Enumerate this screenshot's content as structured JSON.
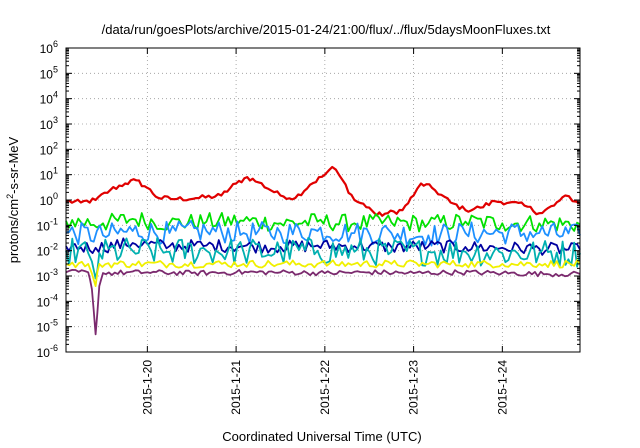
{
  "chart_data": {
    "type": "line",
    "title": "/data/run/goesPlots/archive/2015-01-24/21:00/flux/../flux/5daysMoonFluxes.txt",
    "xlabel": "Coordinated Universal Time (UTC)",
    "ylabel": "protons/cm2-s-sr-MeV",
    "ylabel_parts": {
      "pre": "protons/cm",
      "sup": "2",
      "post": "-s-sr-MeV"
    },
    "yscale": "log",
    "ylim": [
      1e-06,
      1000000.0
    ],
    "xlim": [
      "2015-01-19T02:00",
      "2015-01-24T21:00"
    ],
    "grid": true,
    "x_ticks": [
      "2015-1-20",
      "2015-1-21",
      "2015-1-22",
      "2015-1-23",
      "2015-1-24"
    ],
    "y_ticks": [
      {
        "base": "10",
        "exp": "-6"
      },
      {
        "base": "10",
        "exp": "-5"
      },
      {
        "base": "10",
        "exp": "-4"
      },
      {
        "base": "10",
        "exp": "-3"
      },
      {
        "base": "10",
        "exp": "-2"
      },
      {
        "base": "10",
        "exp": "-1"
      },
      {
        "base": "10",
        "exp": "0"
      },
      {
        "base": "10",
        "exp": "1"
      },
      {
        "base": "10",
        "exp": "2"
      },
      {
        "base": "10",
        "exp": "3"
      },
      {
        "base": "10",
        "exp": "4"
      },
      {
        "base": "10",
        "exp": "5"
      },
      {
        "base": "10",
        "exp": "6"
      }
    ],
    "series": [
      {
        "color": "#e00000",
        "points": [
          [
            "2015-01-19T02:00",
            0.9
          ],
          [
            "2015-01-19T06:00",
            0.8
          ],
          [
            "2015-01-19T10:00",
            1.0
          ],
          [
            "2015-01-19T14:00",
            2.5
          ],
          [
            "2015-01-19T18:00",
            4.5
          ],
          [
            "2015-01-19T21:00",
            6.0
          ],
          [
            "2015-01-20T00:00",
            3.0
          ],
          [
            "2015-01-20T03:00",
            1.2
          ],
          [
            "2015-01-20T08:00",
            1.1
          ],
          [
            "2015-01-20T14:00",
            1.2
          ],
          [
            "2015-01-20T20:00",
            1.5
          ],
          [
            "2015-01-21T00:00",
            4.5
          ],
          [
            "2015-01-21T03:00",
            8.0
          ],
          [
            "2015-01-21T06:00",
            5.0
          ],
          [
            "2015-01-21T12:00",
            1.5
          ],
          [
            "2015-01-21T16:00",
            1.2
          ],
          [
            "2015-01-21T20:00",
            4.0
          ],
          [
            "2015-01-22T00:00",
            10.0
          ],
          [
            "2015-01-22T02:00",
            20.0
          ],
          [
            "2015-01-22T04:00",
            9.0
          ],
          [
            "2015-01-22T08:00",
            1.0
          ],
          [
            "2015-01-22T12:00",
            0.5
          ],
          [
            "2015-01-22T14:00",
            0.25
          ],
          [
            "2015-01-22T17:00",
            0.3
          ],
          [
            "2015-01-22T21:00",
            0.4
          ],
          [
            "2015-01-23T00:00",
            1.5
          ],
          [
            "2015-01-23T02:00",
            4.5
          ],
          [
            "2015-01-23T05:00",
            3.0
          ],
          [
            "2015-01-23T10:00",
            0.8
          ],
          [
            "2015-01-23T14:00",
            0.4
          ],
          [
            "2015-01-23T18:00",
            0.5
          ],
          [
            "2015-01-23T22:00",
            0.9
          ],
          [
            "2015-01-24T02:00",
            0.8
          ],
          [
            "2015-01-24T06:00",
            0.6
          ],
          [
            "2015-01-24T10:00",
            0.3
          ],
          [
            "2015-01-24T14:00",
            0.6
          ],
          [
            "2015-01-24T17:00",
            1.5
          ],
          [
            "2015-01-24T19:00",
            0.9
          ],
          [
            "2015-01-24T21:00",
            0.7
          ]
        ]
      },
      {
        "color": "#00e000",
        "points": [
          [
            "2015-01-19T02:00",
            0.15
          ],
          [
            "2015-01-19T12:00",
            0.12
          ],
          [
            "2015-01-19T20:00",
            0.18
          ],
          [
            "2015-01-20T06:00",
            0.12
          ],
          [
            "2015-01-20T16:00",
            0.14
          ],
          [
            "2015-01-21T02:00",
            0.15
          ],
          [
            "2015-01-21T12:00",
            0.12
          ],
          [
            "2015-01-21T22:00",
            0.14
          ],
          [
            "2015-01-22T08:00",
            0.12
          ],
          [
            "2015-01-22T18:00",
            0.13
          ],
          [
            "2015-01-23T04:00",
            0.12
          ],
          [
            "2015-01-23T14:00",
            0.14
          ],
          [
            "2015-01-24T00:00",
            0.12
          ],
          [
            "2015-01-24T10:00",
            0.12
          ],
          [
            "2015-01-24T21:00",
            0.11
          ]
        ]
      },
      {
        "color": "#1e90ff",
        "points": [
          [
            "2015-01-19T02:00",
            0.05
          ],
          [
            "2015-01-19T12:00",
            0.04
          ],
          [
            "2015-01-19T20:00",
            0.06
          ],
          [
            "2015-01-20T06:00",
            0.05
          ],
          [
            "2015-01-20T16:00",
            0.06
          ],
          [
            "2015-01-21T02:00",
            0.05
          ],
          [
            "2015-01-21T12:00",
            0.05
          ],
          [
            "2015-01-21T22:00",
            0.06
          ],
          [
            "2015-01-22T08:00",
            0.05
          ],
          [
            "2015-01-22T18:00",
            0.05
          ],
          [
            "2015-01-23T04:00",
            0.04
          ],
          [
            "2015-01-23T14:00",
            0.05
          ],
          [
            "2015-01-24T00:00",
            0.05
          ],
          [
            "2015-01-24T10:00",
            0.05
          ],
          [
            "2015-01-24T21:00",
            0.04
          ]
        ]
      },
      {
        "color": "#0000a0",
        "points": [
          [
            "2015-01-19T02:00",
            0.015
          ],
          [
            "2015-01-19T10:00",
            0.013
          ],
          [
            "2015-01-19T20:00",
            0.02
          ],
          [
            "2015-01-20T06:00",
            0.015
          ],
          [
            "2015-01-20T16:00",
            0.016
          ],
          [
            "2015-01-21T02:00",
            0.015
          ],
          [
            "2015-01-21T12:00",
            0.014
          ],
          [
            "2015-01-21T22:00",
            0.016
          ],
          [
            "2015-01-22T08:00",
            0.015
          ],
          [
            "2015-01-22T18:00",
            0.014
          ],
          [
            "2015-01-23T04:00",
            0.015
          ],
          [
            "2015-01-23T14:00",
            0.014
          ],
          [
            "2015-01-24T00:00",
            0.013
          ],
          [
            "2015-01-24T10:00",
            0.012
          ],
          [
            "2015-01-24T21:00",
            0.011
          ]
        ]
      },
      {
        "color": "#00b0b0",
        "points": [
          [
            "2015-01-19T02:00",
            0.01
          ],
          [
            "2015-01-19T08:00",
            0.008
          ],
          [
            "2015-01-19T10:00",
            0.0008
          ],
          [
            "2015-01-19T11:00",
            0.008
          ],
          [
            "2015-01-19T20:00",
            0.01
          ],
          [
            "2015-01-20T06:00",
            0.009
          ],
          [
            "2015-01-20T16:00",
            0.01
          ],
          [
            "2015-01-21T02:00",
            0.009
          ],
          [
            "2015-01-21T12:00",
            0.009
          ],
          [
            "2015-01-21T22:00",
            0.01
          ],
          [
            "2015-01-22T08:00",
            0.009
          ],
          [
            "2015-01-22T18:00",
            0.009
          ],
          [
            "2015-01-23T04:00",
            0.009
          ],
          [
            "2015-01-23T14:00",
            0.009
          ],
          [
            "2015-01-24T00:00",
            0.008
          ],
          [
            "2015-01-24T10:00",
            0.008
          ],
          [
            "2015-01-24T21:00",
            0.008
          ]
        ]
      },
      {
        "color": "#f0f000",
        "points": [
          [
            "2015-01-19T02:00",
            0.003
          ],
          [
            "2015-01-19T08:00",
            0.003
          ],
          [
            "2015-01-19T10:00",
            0.0004
          ],
          [
            "2015-01-19T11:00",
            0.003
          ],
          [
            "2015-01-19T20:00",
            0.003
          ],
          [
            "2015-01-20T06:00",
            0.003
          ],
          [
            "2015-01-20T16:00",
            0.003
          ],
          [
            "2015-01-21T02:00",
            0.003
          ],
          [
            "2015-01-21T12:00",
            0.003
          ],
          [
            "2015-01-21T22:00",
            0.003
          ],
          [
            "2015-01-22T08:00",
            0.003
          ],
          [
            "2015-01-22T18:00",
            0.003
          ],
          [
            "2015-01-23T04:00",
            0.003
          ],
          [
            "2015-01-23T14:00",
            0.003
          ],
          [
            "2015-01-24T00:00",
            0.003
          ],
          [
            "2015-01-24T10:00",
            0.003
          ],
          [
            "2015-01-24T21:00",
            0.003
          ]
        ]
      },
      {
        "color": "#7b2a6e",
        "points": [
          [
            "2015-01-19T02:00",
            0.0014
          ],
          [
            "2015-01-19T08:00",
            0.0014
          ],
          [
            "2015-01-19T09:00",
            0.0003
          ],
          [
            "2015-01-19T10:00",
            5e-06
          ],
          [
            "2015-01-19T11:00",
            0.0004
          ],
          [
            "2015-01-19T12:00",
            0.0013
          ],
          [
            "2015-01-20T00:00",
            0.0014
          ],
          [
            "2015-01-20T12:00",
            0.0013
          ],
          [
            "2015-01-21T00:00",
            0.0014
          ],
          [
            "2015-01-21T12:00",
            0.0014
          ],
          [
            "2015-01-22T00:00",
            0.0013
          ],
          [
            "2015-01-22T12:00",
            0.0014
          ],
          [
            "2015-01-23T00:00",
            0.0013
          ],
          [
            "2015-01-23T12:00",
            0.0014
          ],
          [
            "2015-01-24T00:00",
            0.0013
          ],
          [
            "2015-01-24T12:00",
            0.0012
          ],
          [
            "2015-01-24T21:00",
            0.0012
          ]
        ]
      }
    ]
  }
}
